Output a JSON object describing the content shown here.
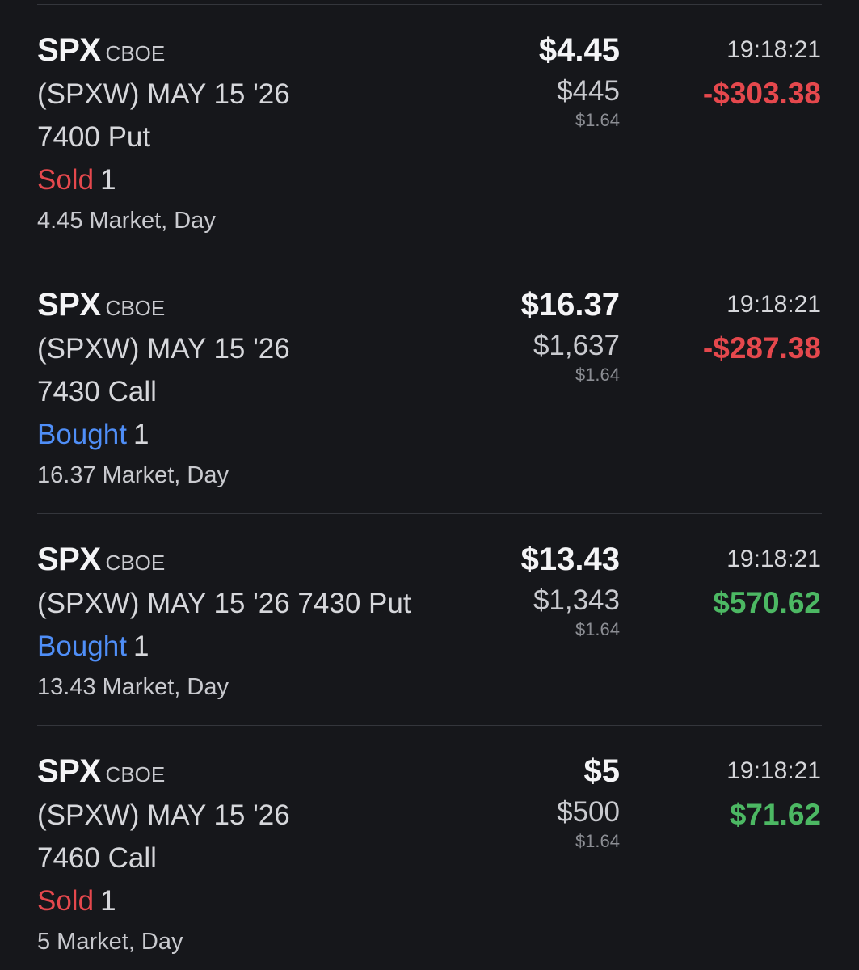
{
  "orders": [
    {
      "symbol": "SPX",
      "exchange": "CBOE",
      "desc_line1": "(SPXW) MAY 15 '26",
      "desc_line2": "7400 Put",
      "side": "Sold",
      "qty": "1",
      "detail": "4.45 Market, Day",
      "price": "$4.45",
      "total": "$445",
      "fee": "$1.64",
      "time": "19:18:21",
      "pnl": "-$303.38",
      "pnl_sign": "negative"
    },
    {
      "symbol": "SPX",
      "exchange": "CBOE",
      "desc_line1": "(SPXW) MAY 15 '26",
      "desc_line2": "7430 Call",
      "side": "Bought",
      "qty": "1",
      "detail": "16.37 Market, Day",
      "price": "$16.37",
      "total": "$1,637",
      "fee": "$1.64",
      "time": "19:18:21",
      "pnl": "-$287.38",
      "pnl_sign": "negative"
    },
    {
      "symbol": "SPX",
      "exchange": "CBOE",
      "desc_line1": "(SPXW) MAY 15 '26 7430 Put",
      "desc_line2": "",
      "side": "Bought",
      "qty": "1",
      "detail": "13.43 Market, Day",
      "price": "$13.43",
      "total": "$1,343",
      "fee": "$1.64",
      "time": "19:18:21",
      "pnl": "$570.62",
      "pnl_sign": "positive"
    },
    {
      "symbol": "SPX",
      "exchange": "CBOE",
      "desc_line1": "(SPXW) MAY 15 '26",
      "desc_line2": "7460 Call",
      "side": "Sold",
      "qty": "1",
      "detail": "5 Market, Day",
      "price": "$5",
      "total": "$500",
      "fee": "$1.64",
      "time": "19:18:21",
      "pnl": "$71.62",
      "pnl_sign": "positive"
    }
  ],
  "colors": {
    "background": "#16171b",
    "sold": "#e5484d",
    "bought": "#4f8ef7",
    "negative": "#e5484d",
    "positive": "#4cb863"
  }
}
